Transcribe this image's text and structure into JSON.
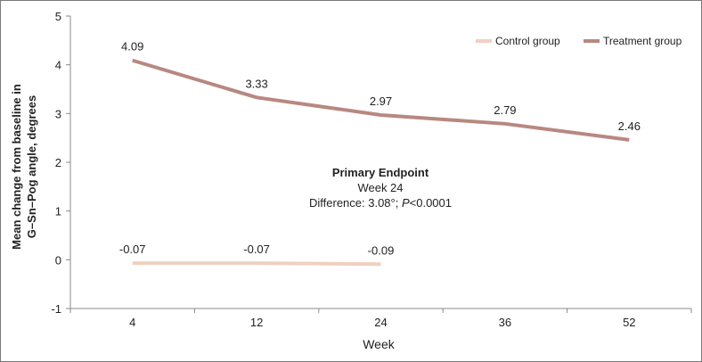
{
  "chart_data": {
    "type": "line",
    "x": [
      4,
      12,
      24,
      36,
      52
    ],
    "categories": [
      "4",
      "12",
      "24",
      "36",
      "52"
    ],
    "series": [
      {
        "name": "Control group",
        "color": "#f0d0c0",
        "values": [
          -0.07,
          -0.07,
          -0.09,
          null,
          null
        ],
        "labels": [
          "-0.07",
          "-0.07",
          "-0.09",
          null,
          null
        ]
      },
      {
        "name": "Treatment group",
        "color": "#b88880",
        "values": [
          4.09,
          3.33,
          2.97,
          2.79,
          2.46
        ],
        "labels": [
          "4.09",
          "3.33",
          "2.97",
          "2.79",
          "2.46"
        ]
      }
    ],
    "xlabel": "Week",
    "ylabel_line1": "Mean change from baseline in",
    "ylabel_line2": "G–Sn–Pog angle, degrees",
    "ylim": [
      -1,
      5
    ],
    "yticks": [
      "-1",
      "0",
      "1",
      "2",
      "3",
      "4",
      "5"
    ],
    "legend_position": "top-right",
    "annotation": {
      "title": "Primary Endpoint",
      "line2": "Week 24",
      "line3_prefix": "Difference: 3.08°; ",
      "line3_italic": "P",
      "line3_suffix": "<0.0001"
    }
  }
}
